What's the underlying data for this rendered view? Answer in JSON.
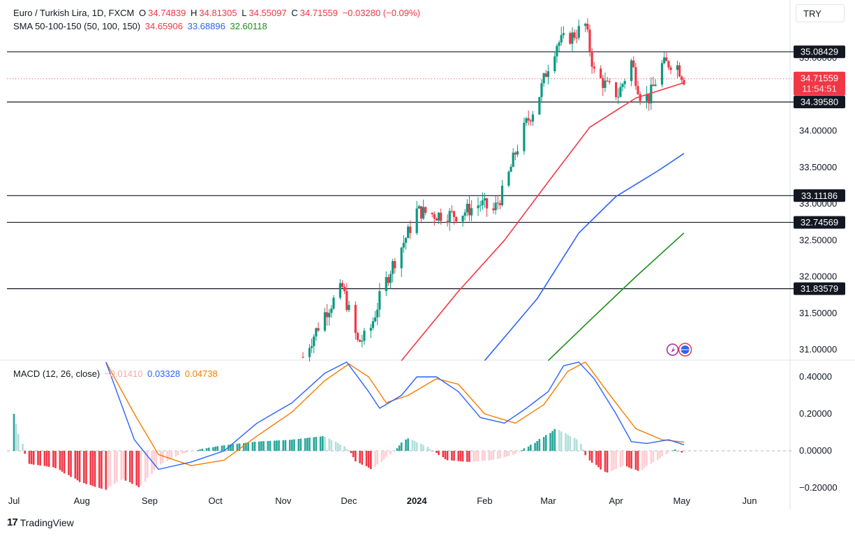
{
  "header": {
    "symbol": "Euro / Turkish Lira, 1D, FXCM",
    "o_label": "O",
    "o_value": "34.74839",
    "h_label": "H",
    "h_value": "34.81305",
    "l_label": "L",
    "l_value": "34.55097",
    "c_label": "C",
    "c_value": "34.71559",
    "change": "−0.03280 (−0.09%)",
    "sma_label": "SMA 50-100-150 (50, 100, 150)",
    "sma50": "34.65906",
    "sma100": "33.68896",
    "sma150": "32.60118"
  },
  "currency_button": "TRY",
  "macd_legend": {
    "label": "MACD (12, 26, close)",
    "hist": "−0.01410",
    "macd": "0.03328",
    "signal": "0.04738"
  },
  "last_price": {
    "price": "34.71559",
    "countdown": "11:54:51"
  },
  "brand": {
    "name": "TradingView",
    "logo": "17"
  },
  "colors": {
    "up": "#089981",
    "down": "#f23645",
    "sma50": "#f23645",
    "sma100": "#2962ff",
    "sma150": "#1b8c1b",
    "macd": "#2962ff",
    "signal": "#f57c00",
    "hist_pos_strong": "#26a69a",
    "hist_pos_weak": "#b2dfdb",
    "hist_neg_strong": "#f23645",
    "hist_neg_weak": "#ffcdd2"
  },
  "chart_data": [
    {
      "type": "candlestick",
      "title": "Euro / Turkish Lira, 1D, FXCM",
      "x_tick_labels": [
        "Jul",
        "Aug",
        "Sep",
        "Oct",
        "Nov",
        "Dec",
        "2024",
        "Feb",
        "Mar",
        "Apr",
        "May",
        "Jun"
      ],
      "y_tick_labels": [
        "31.00000",
        "31.50000",
        "32.00000",
        "32.50000",
        "33.00000",
        "33.50000",
        "34.00000",
        "35.00000"
      ],
      "ylim": [
        30.85,
        35.75
      ],
      "horizontal_levels": [
        "35.08429",
        "34.39580",
        "33.11186",
        "32.74569",
        "31.83579"
      ],
      "price_anchors": [
        [
          "2023-11-10",
          30.9
        ],
        [
          "2023-11-15",
          31.2
        ],
        [
          "2023-11-20",
          31.5
        ],
        [
          "2023-11-28",
          31.85
        ],
        [
          "2023-12-05",
          31.1
        ],
        [
          "2023-12-10",
          31.2
        ],
        [
          "2023-12-15",
          31.7
        ],
        [
          "2023-12-20",
          32.1
        ],
        [
          "2023-12-28",
          32.6
        ],
        [
          "2024-01-01",
          32.9
        ],
        [
          "2024-01-10",
          32.85
        ],
        [
          "2024-01-20",
          32.85
        ],
        [
          "2024-01-30",
          33.0
        ],
        [
          "2024-02-05",
          32.9
        ],
        [
          "2024-02-10",
          33.2
        ],
        [
          "2024-02-15",
          33.7
        ],
        [
          "2024-02-20",
          34.1
        ],
        [
          "2024-02-25",
          34.4
        ],
        [
          "2024-03-01",
          34.9
        ],
        [
          "2024-03-05",
          35.2
        ],
        [
          "2024-03-12",
          35.3
        ],
        [
          "2024-03-18",
          35.45
        ],
        [
          "2024-03-22",
          34.8
        ],
        [
          "2024-03-28",
          34.6
        ],
        [
          "2024-04-02",
          34.5
        ],
        [
          "2024-04-08",
          34.95
        ],
        [
          "2024-04-12",
          34.5
        ],
        [
          "2024-04-16",
          34.45
        ],
        [
          "2024-04-22",
          34.9
        ],
        [
          "2024-04-28",
          34.95
        ],
        [
          "2024-05-02",
          34.72
        ]
      ],
      "sma50": [
        [
          "2023-12-25",
          30.85
        ],
        [
          "2024-01-20",
          31.8
        ],
        [
          "2024-02-10",
          32.5
        ],
        [
          "2024-03-01",
          33.3
        ],
        [
          "2024-03-20",
          34.05
        ],
        [
          "2024-04-10",
          34.45
        ],
        [
          "2024-05-02",
          34.66
        ]
      ],
      "sma100": [
        [
          "2024-02-01",
          30.85
        ],
        [
          "2024-02-25",
          31.7
        ],
        [
          "2024-03-15",
          32.6
        ],
        [
          "2024-04-01",
          33.1
        ],
        [
          "2024-04-20",
          33.45
        ],
        [
          "2024-05-02",
          33.69
        ]
      ],
      "sma150": [
        [
          "2024-03-01",
          30.85
        ],
        [
          "2024-03-20",
          31.4
        ],
        [
          "2024-04-10",
          32.0
        ],
        [
          "2024-05-02",
          32.6
        ]
      ]
    },
    {
      "type": "macd",
      "title": "MACD (12, 26, close)",
      "y_tick_labels": [
        "0.40000",
        "0.20000",
        "0.00000",
        "−0.20000"
      ],
      "ylim": [
        -0.2,
        0.48
      ],
      "macd_line": [
        [
          "2023-08-12",
          0.48
        ],
        [
          "2023-08-25",
          0.06
        ],
        [
          "2023-09-05",
          -0.1
        ],
        [
          "2023-09-20",
          -0.06
        ],
        [
          "2023-10-05",
          0.0
        ],
        [
          "2023-10-20",
          0.15
        ],
        [
          "2023-11-05",
          0.26
        ],
        [
          "2023-11-20",
          0.42
        ],
        [
          "2023-11-30",
          0.48
        ],
        [
          "2023-12-10",
          0.32
        ],
        [
          "2023-12-15",
          0.23
        ],
        [
          "2023-12-25",
          0.3
        ],
        [
          "2024-01-01",
          0.4
        ],
        [
          "2024-01-10",
          0.4
        ],
        [
          "2024-01-20",
          0.32
        ],
        [
          "2024-01-30",
          0.18
        ],
        [
          "2024-02-10",
          0.15
        ],
        [
          "2024-02-20",
          0.23
        ],
        [
          "2024-03-01",
          0.32
        ],
        [
          "2024-03-08",
          0.46
        ],
        [
          "2024-03-15",
          0.48
        ],
        [
          "2024-03-22",
          0.39
        ],
        [
          "2024-04-01",
          0.2
        ],
        [
          "2024-04-08",
          0.05
        ],
        [
          "2024-04-15",
          0.04
        ],
        [
          "2024-04-25",
          0.06
        ],
        [
          "2024-05-02",
          0.033
        ]
      ],
      "signal_line": [
        [
          "2023-08-12",
          0.48
        ],
        [
          "2023-08-25",
          0.2
        ],
        [
          "2023-09-05",
          -0.02
        ],
        [
          "2023-09-20",
          -0.08
        ],
        [
          "2023-10-05",
          -0.05
        ],
        [
          "2023-10-20",
          0.08
        ],
        [
          "2023-11-05",
          0.21
        ],
        [
          "2023-11-20",
          0.38
        ],
        [
          "2023-12-01",
          0.47
        ],
        [
          "2023-12-10",
          0.4
        ],
        [
          "2023-12-18",
          0.26
        ],
        [
          "2023-12-28",
          0.3
        ],
        [
          "2024-01-10",
          0.39
        ],
        [
          "2024-01-20",
          0.36
        ],
        [
          "2024-02-01",
          0.2
        ],
        [
          "2024-02-15",
          0.15
        ],
        [
          "2024-02-28",
          0.25
        ],
        [
          "2024-03-10",
          0.43
        ],
        [
          "2024-03-18",
          0.48
        ],
        [
          "2024-03-28",
          0.32
        ],
        [
          "2024-04-10",
          0.12
        ],
        [
          "2024-04-22",
          0.06
        ],
        [
          "2024-05-02",
          0.047
        ]
      ],
      "histogram": [
        [
          "2023-07-01",
          0.2
        ],
        [
          "2023-07-08",
          -0.07
        ],
        [
          "2023-07-20",
          -0.09
        ],
        [
          "2023-08-01",
          -0.17
        ],
        [
          "2023-08-12",
          -0.21
        ],
        [
          "2023-08-20",
          -0.15
        ],
        [
          "2023-08-28",
          -0.2
        ],
        [
          "2023-09-05",
          -0.08
        ],
        [
          "2023-09-15",
          -0.02
        ],
        [
          "2023-09-25",
          0.01
        ],
        [
          "2023-10-05",
          0.03
        ],
        [
          "2023-10-20",
          0.05
        ],
        [
          "2023-11-05",
          0.06
        ],
        [
          "2023-11-20",
          0.08
        ],
        [
          "2023-11-30",
          0.02
        ],
        [
          "2023-12-05",
          -0.06
        ],
        [
          "2023-12-12",
          -0.1
        ],
        [
          "2023-12-20",
          -0.02
        ],
        [
          "2023-12-28",
          0.07
        ],
        [
          "2024-01-05",
          0.03
        ],
        [
          "2024-01-15",
          -0.05
        ],
        [
          "2024-01-25",
          -0.06
        ],
        [
          "2024-02-05",
          -0.05
        ],
        [
          "2024-02-15",
          -0.02
        ],
        [
          "2024-02-25",
          0.05
        ],
        [
          "2024-03-05",
          0.12
        ],
        [
          "2024-03-15",
          0.06
        ],
        [
          "2024-03-20",
          -0.05
        ],
        [
          "2024-03-28",
          -0.12
        ],
        [
          "2024-04-05",
          -0.08
        ],
        [
          "2024-04-12",
          -0.11
        ],
        [
          "2024-04-20",
          -0.05
        ],
        [
          "2024-04-28",
          0.01
        ],
        [
          "2024-05-02",
          -0.014
        ]
      ]
    }
  ]
}
